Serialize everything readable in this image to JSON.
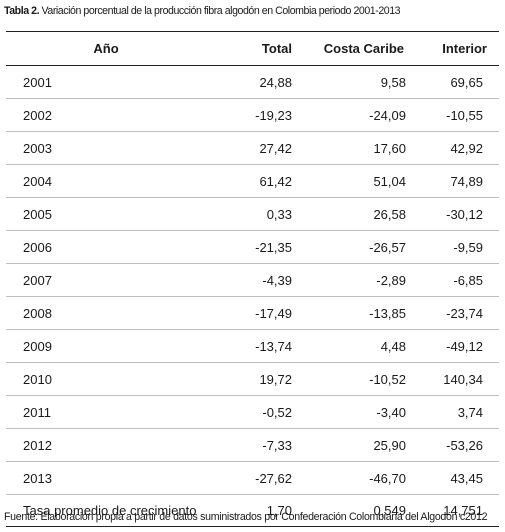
{
  "caption": {
    "label": "Tabla 2.",
    "text": " Variación porcentual de la producción fibra algodón en Colombia periodo 2001-2013"
  },
  "table": {
    "headers": [
      "Año",
      "Total",
      "Costa Caribe",
      "Interior"
    ],
    "rows": [
      [
        "2001",
        "24,88",
        "9,58",
        "69,65"
      ],
      [
        "2002",
        "-19,23",
        "-24,09",
        "-10,55"
      ],
      [
        "2003",
        "27,42",
        "17,60",
        "42,92"
      ],
      [
        "2004",
        "61,42",
        "51,04",
        "74,89"
      ],
      [
        "2005",
        "0,33",
        "26,58",
        "-30,12"
      ],
      [
        "2006",
        "-21,35",
        "-26,57",
        "-9,59"
      ],
      [
        "2007",
        "-4,39",
        "-2,89",
        "-6,85"
      ],
      [
        "2008",
        "-17,49",
        "-13,85",
        "-23,74"
      ],
      [
        "2009",
        "-13,74",
        "4,48",
        "-49,12"
      ],
      [
        "2010",
        "19,72",
        "-10,52",
        "140,34"
      ],
      [
        "2011",
        "-0,52",
        "-3,40",
        "3,74"
      ],
      [
        "2012",
        "-7,33",
        "25,90",
        "-53,26"
      ],
      [
        "2013",
        "-27,62",
        "-46,70",
        "43,45"
      ],
      [
        "Tasa promedio de crecimiento",
        "1,70",
        "0,549",
        "14,751"
      ]
    ]
  },
  "footnote": "Fuente: Elaboración propia a partir de datos suministrados por Confederación Colombiana del Algodón c2012"
}
